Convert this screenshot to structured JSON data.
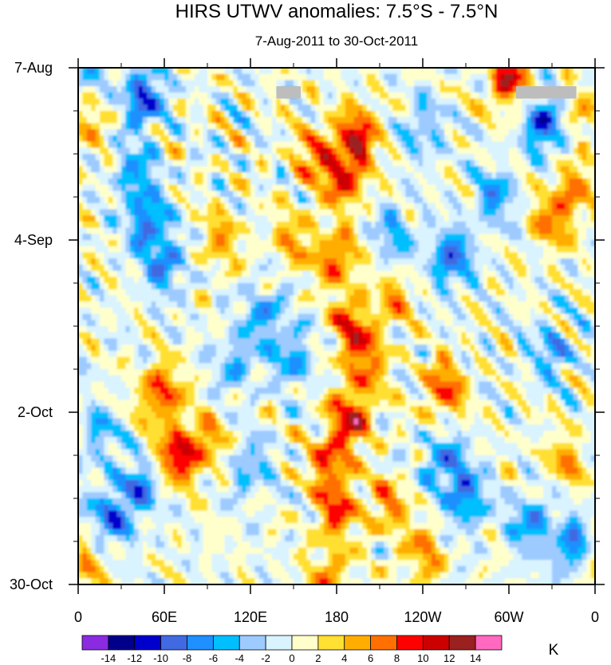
{
  "chart_data": {
    "type": "heatmap",
    "title": "HIRS UTWV anomalies: 7.5°S - 7.5°N",
    "subtitle": "7-Aug-2011 to 30-Oct-2011",
    "x_ticks": [
      "0",
      "60E",
      "120E",
      "180",
      "120W",
      "60W",
      "0"
    ],
    "x_tick_values": [
      0,
      60,
      120,
      180,
      240,
      300,
      360
    ],
    "xlim": [
      0,
      360
    ],
    "y_ticks": [
      "7-Aug",
      "4-Sep",
      "2-Oct",
      "30-Oct"
    ],
    "y_tick_days": [
      0,
      28,
      56,
      84
    ],
    "ylim_days": [
      0,
      84
    ],
    "colorbar": {
      "unit": "K",
      "levels": [
        -14,
        -12,
        -10,
        -8,
        -6,
        -4,
        -2,
        0,
        2,
        4,
        6,
        8,
        10,
        12,
        14
      ],
      "labels": [
        "-14",
        "-12",
        "-10",
        "-8",
        "-6",
        "-4",
        "-2",
        "0",
        "2",
        "4",
        "6",
        "8",
        "10",
        "12",
        "14"
      ],
      "colors": [
        "#8a2be2",
        "#00008b",
        "#0000cd",
        "#4169e1",
        "#1e90ff",
        "#00bfff",
        "#9ecbff",
        "#d9f3ff",
        "#ffffcc",
        "#ffe033",
        "#ffae00",
        "#ff7000",
        "#ff0000",
        "#cc0000",
        "#9b2020",
        "#ff69c0"
      ]
    },
    "anomaly_features": [
      {
        "lon": 195,
        "day": 11,
        "value": 10
      },
      {
        "lon": 185,
        "day": 18,
        "value": 9
      },
      {
        "lon": 165,
        "day": 14,
        "value": 7
      },
      {
        "lon": 180,
        "day": 31,
        "value": 8
      },
      {
        "lon": 190,
        "day": 42,
        "value": 8
      },
      {
        "lon": 200,
        "day": 48,
        "value": 7
      },
      {
        "lon": 190,
        "day": 57,
        "value": 10
      },
      {
        "lon": 175,
        "day": 64,
        "value": 8
      },
      {
        "lon": 180,
        "day": 72,
        "value": 8
      },
      {
        "lon": 175,
        "day": 83,
        "value": 6
      },
      {
        "lon": 215,
        "day": 71,
        "value": 6
      },
      {
        "lon": 240,
        "day": 79,
        "value": 6
      },
      {
        "lon": 255,
        "day": 52,
        "value": 8
      },
      {
        "lon": 70,
        "day": 63,
        "value": 10
      },
      {
        "lon": 58,
        "day": 53,
        "value": 9
      },
      {
        "lon": 300,
        "day": 2,
        "value": 10
      },
      {
        "lon": 345,
        "day": 20,
        "value": 6
      },
      {
        "lon": 330,
        "day": 25,
        "value": 6
      },
      {
        "lon": 350,
        "day": 6,
        "value": 5
      },
      {
        "lon": 150,
        "day": 28,
        "value": 5
      },
      {
        "lon": 100,
        "day": 28,
        "value": 5
      },
      {
        "lon": 90,
        "day": 61,
        "value": 5
      },
      {
        "lon": 220,
        "day": 38,
        "value": 5
      },
      {
        "lon": 10,
        "day": 7,
        "value": 5
      },
      {
        "lon": 5,
        "day": 80,
        "value": 6
      },
      {
        "lon": 340,
        "day": 64,
        "value": 5
      },
      {
        "lon": 45,
        "day": 5,
        "value": -10
      },
      {
        "lon": 48,
        "day": 25,
        "value": -8
      },
      {
        "lon": 60,
        "day": 32,
        "value": -7
      },
      {
        "lon": 40,
        "day": 17,
        "value": -6
      },
      {
        "lon": 40,
        "day": 69,
        "value": -8
      },
      {
        "lon": 20,
        "day": 74,
        "value": -7
      },
      {
        "lon": 260,
        "day": 31,
        "value": -9
      },
      {
        "lon": 270,
        "day": 70,
        "value": -8
      },
      {
        "lon": 255,
        "day": 64,
        "value": -7
      },
      {
        "lon": 315,
        "day": 74,
        "value": -7
      },
      {
        "lon": 325,
        "day": 9,
        "value": -10
      },
      {
        "lon": 345,
        "day": 78,
        "value": -8
      },
      {
        "lon": 330,
        "day": 46,
        "value": -6
      },
      {
        "lon": 130,
        "day": 40,
        "value": -6
      },
      {
        "lon": 150,
        "day": 47,
        "value": -6
      },
      {
        "lon": 110,
        "day": 48,
        "value": -5
      },
      {
        "lon": 220,
        "day": 27,
        "value": -5
      },
      {
        "lon": 120,
        "day": 65,
        "value": -5
      },
      {
        "lon": 290,
        "day": 21,
        "value": -6
      },
      {
        "lon": 5,
        "day": 3,
        "value": -6
      },
      {
        "lon": 240,
        "day": 10,
        "value": -5
      },
      {
        "lon": 15,
        "day": 60,
        "value": -5
      }
    ],
    "missing_data": [
      {
        "lon_start": 138,
        "lon_end": 155,
        "day_start": 3,
        "day_end": 5
      },
      {
        "lon_start": 305,
        "lon_end": 347,
        "day_start": 3,
        "day_end": 5
      }
    ]
  }
}
